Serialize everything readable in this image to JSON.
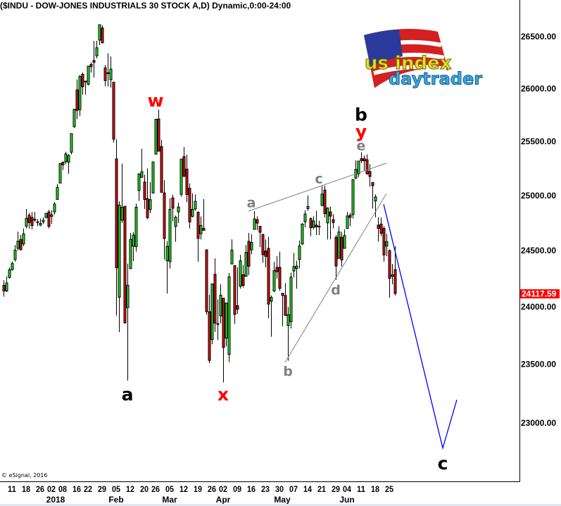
{
  "title": "($INDU - DOW-JONES INDUSTRIALS 30 STOCK A,D) Dynamic,0:00-24:00",
  "copyright": "© eSignal, 2016",
  "logo": {
    "line1": "us index",
    "line2": "daytrader"
  },
  "colors": {
    "up": "#22dd22",
    "down": "#dd1111",
    "outline": "#000000",
    "trendline": "#808080",
    "projection": "#0000ff",
    "last_price_bg": "#ff0000",
    "wave_red": "#ff0000",
    "wave_black": "#000000",
    "wave_gray": "#808080"
  },
  "chart_data": {
    "type": "candlestick",
    "scale": "log",
    "ylim": [
      22510,
      26850
    ],
    "grid": false,
    "y_ticks": [
      "26500.00",
      "26000.00",
      "25500.00",
      "25000.00",
      "24500.00",
      "24000.00",
      "23500.00",
      "23000.00"
    ],
    "last_price": "24117.59",
    "x_week_labels": [
      {
        "date": "2017-12-11",
        "label": "11"
      },
      {
        "date": "2017-12-18",
        "label": "18"
      },
      {
        "date": "2017-12-26",
        "label": "26"
      },
      {
        "date": "2018-01-02",
        "label": "02"
      },
      {
        "date": "2018-01-08",
        "label": "08"
      },
      {
        "date": "2018-01-16",
        "label": "16"
      },
      {
        "date": "2018-01-22",
        "label": "22"
      },
      {
        "date": "2018-01-29",
        "label": "29"
      },
      {
        "date": "2018-02-05",
        "label": "05"
      },
      {
        "date": "2018-02-12",
        "label": "12"
      },
      {
        "date": "2018-02-20",
        "label": "20"
      },
      {
        "date": "2018-02-26",
        "label": "26"
      },
      {
        "date": "2018-03-05",
        "label": "05"
      },
      {
        "date": "2018-03-12",
        "label": "12"
      },
      {
        "date": "2018-03-19",
        "label": "19"
      },
      {
        "date": "2018-03-26",
        "label": "26"
      },
      {
        "date": "2018-04-02",
        "label": "02"
      },
      {
        "date": "2018-04-09",
        "label": "09"
      },
      {
        "date": "2018-04-16",
        "label": "16"
      },
      {
        "date": "2018-04-23",
        "label": "23"
      },
      {
        "date": "2018-04-30",
        "label": "30"
      },
      {
        "date": "2018-05-07",
        "label": "07"
      },
      {
        "date": "2018-05-14",
        "label": "14"
      },
      {
        "date": "2018-05-21",
        "label": "21"
      },
      {
        "date": "2018-05-29",
        "label": "29"
      },
      {
        "date": "2018-06-04",
        "label": "04"
      },
      {
        "date": "2018-06-11",
        "label": "11"
      },
      {
        "date": "2018-06-18",
        "label": "18"
      },
      {
        "date": "2018-06-25",
        "label": "25"
      }
    ],
    "x_month_labels": [
      {
        "date": "2018-01-02",
        "label": "2018"
      },
      {
        "date": "2018-02-05",
        "label": "Feb"
      },
      {
        "date": "2018-03-05",
        "label": "Mar"
      },
      {
        "date": "2018-04-02",
        "label": "Apr"
      },
      {
        "date": "2018-05-01",
        "label": "May"
      },
      {
        "date": "2018-06-04",
        "label": "Jun"
      }
    ],
    "candles": [
      [
        "2017-12-06",
        24190,
        24235,
        24090,
        24140
      ],
      [
        "2017-12-07",
        24140,
        24270,
        24130,
        24211
      ],
      [
        "2017-12-08",
        24260,
        24350,
        24250,
        24329
      ],
      [
        "2017-12-11",
        24330,
        24400,
        24320,
        24386
      ],
      [
        "2017-12-12",
        24420,
        24550,
        24400,
        24504
      ],
      [
        "2017-12-13",
        24520,
        24670,
        24500,
        24585
      ],
      [
        "2017-12-14",
        24600,
        24640,
        24500,
        24508
      ],
      [
        "2017-12-15",
        24560,
        24700,
        24540,
        24651
      ],
      [
        "2017-12-18",
        24720,
        24876,
        24700,
        24792
      ],
      [
        "2017-12-19",
        24820,
        24840,
        24700,
        24754
      ],
      [
        "2017-12-20",
        24800,
        24850,
        24690,
        24726
      ],
      [
        "2017-12-21",
        24780,
        24850,
        24760,
        24782
      ],
      [
        "2017-12-22",
        24760,
        24785,
        24720,
        24754
      ],
      [
        "2017-12-26",
        24730,
        24790,
        24720,
        24746
      ],
      [
        "2017-12-27",
        24760,
        24800,
        24740,
        24774
      ],
      [
        "2017-12-28",
        24800,
        24840,
        24790,
        24837
      ],
      [
        "2017-12-29",
        24850,
        24870,
        24700,
        24719
      ],
      [
        "2018-01-02",
        24810,
        24864,
        24742,
        24824
      ],
      [
        "2018-01-03",
        24850,
        24941,
        24825,
        24922
      ],
      [
        "2018-01-04",
        24964,
        25105,
        24963,
        25075
      ],
      [
        "2018-01-05",
        25114,
        25299,
        25112,
        25295
      ],
      [
        "2018-01-08",
        25308,
        25311,
        25235,
        25283
      ],
      [
        "2018-01-09",
        25312,
        25404,
        25291,
        25385
      ],
      [
        "2018-01-10",
        25308,
        25383,
        25200,
        25369
      ],
      [
        "2018-01-11",
        25400,
        25575,
        25380,
        25574
      ],
      [
        "2018-01-12",
        25639,
        25804,
        25627,
        25803
      ],
      [
        "2018-01-16",
        25987,
        26086,
        25710,
        25792
      ],
      [
        "2018-01-17",
        25799,
        26130,
        25740,
        26115
      ],
      [
        "2018-01-18",
        26137,
        26153,
        25941,
        26017
      ],
      [
        "2018-01-19",
        26070,
        26072,
        25942,
        26071
      ],
      [
        "2018-01-22",
        26040,
        26215,
        26030,
        26214
      ],
      [
        "2018-01-23",
        26231,
        26250,
        26153,
        26210
      ],
      [
        "2018-01-24",
        26269,
        26458,
        26105,
        26252
      ],
      [
        "2018-01-25",
        26313,
        26459,
        26290,
        26392
      ],
      [
        "2018-01-26",
        26466,
        26617,
        26418,
        26616
      ],
      [
        "2018-01-29",
        26584,
        26608,
        26435,
        26439
      ],
      [
        "2018-01-30",
        26198,
        26225,
        26022,
        26076
      ],
      [
        "2018-01-31",
        26150,
        26338,
        26020,
        26149
      ],
      [
        "2018-02-01",
        26084,
        26307,
        26009,
        26186
      ],
      [
        "2018-02-02",
        26061,
        26061,
        25490,
        25521
      ],
      [
        "2018-02-05",
        25338,
        25520,
        23923,
        24346
      ],
      [
        "2018-02-06",
        24085,
        24946,
        23778,
        24912
      ],
      [
        "2018-02-07",
        24775,
        25294,
        24750,
        24893
      ],
      [
        "2018-02-08",
        24902,
        24903,
        23850,
        23860
      ],
      [
        "2018-02-09",
        23993,
        24382,
        23360,
        24191
      ],
      [
        "2018-02-12",
        24338,
        24660,
        24338,
        24601
      ],
      [
        "2018-02-13",
        24540,
        24667,
        24405,
        24640
      ],
      [
        "2018-02-14",
        24535,
        24925,
        24490,
        24893
      ],
      [
        "2018-02-15",
        25047,
        25203,
        24950,
        25200
      ],
      [
        "2018-02-16",
        25166,
        25432,
        25166,
        25219
      ],
      [
        "2018-02-20",
        25124,
        25191,
        24877,
        24964
      ],
      [
        "2018-02-21",
        24971,
        25250,
        24783,
        24798
      ],
      [
        "2018-02-22",
        24872,
        25123,
        24839,
        24962
      ],
      [
        "2018-02-23",
        25022,
        25310,
        25022,
        25310
      ],
      [
        "2018-02-26",
        25382,
        25710,
        25382,
        25709
      ],
      [
        "2018-02-27",
        25711,
        25800,
        25405,
        25410
      ],
      [
        "2018-02-28",
        25453,
        25516,
        25027,
        25029
      ],
      [
        "2018-03-01",
        25024,
        25140,
        24420,
        24609
      ],
      [
        "2018-03-02",
        24410,
        24586,
        24117,
        24538
      ],
      [
        "2018-03-05",
        24400,
        24975,
        24340,
        24874
      ],
      [
        "2018-03-06",
        24978,
        25007,
        24765,
        24884
      ],
      [
        "2018-03-07",
        24717,
        24817,
        24580,
        24801
      ],
      [
        "2018-03-08",
        24850,
        24935,
        24750,
        24895
      ],
      [
        "2018-03-09",
        25010,
        25337,
        24990,
        25336
      ],
      [
        "2018-03-12",
        25359,
        25449,
        25167,
        25178
      ],
      [
        "2018-03-13",
        25243,
        25378,
        24938,
        25008
      ],
      [
        "2018-03-14",
        25066,
        25111,
        24700,
        24759
      ],
      [
        "2018-03-15",
        24810,
        25020,
        24800,
        24873
      ],
      [
        "2018-03-16",
        24877,
        25009,
        24860,
        24947
      ],
      [
        "2018-03-19",
        24847,
        24855,
        24400,
        24610
      ],
      [
        "2018-03-20",
        24652,
        24808,
        24600,
        24727
      ],
      [
        "2018-03-21",
        24700,
        24967,
        24680,
        24683
      ],
      [
        "2018-03-22",
        24507,
        24507,
        23930,
        23958
      ],
      [
        "2018-03-23",
        23957,
        24107,
        23509,
        23533
      ],
      [
        "2018-03-26",
        23714,
        24207,
        23672,
        24202
      ],
      [
        "2018-03-27",
        24288,
        24430,
        23780,
        23857
      ],
      [
        "2018-03-28",
        23852,
        24065,
        23708,
        23849
      ],
      [
        "2018-03-29",
        23920,
        24200,
        23855,
        24103
      ],
      [
        "2018-04-02",
        24076,
        24076,
        23344,
        23644
      ],
      [
        "2018-04-03",
        23726,
        24037,
        23654,
        24033
      ],
      [
        "2018-04-04",
        23585,
        24300,
        23518,
        24265
      ],
      [
        "2018-04-05",
        24380,
        24602,
        24380,
        24505
      ],
      [
        "2018-04-06",
        24366,
        24366,
        23849,
        23933
      ],
      [
        "2018-04-09",
        24010,
        24350,
        23938,
        23979
      ],
      [
        "2018-04-10",
        24182,
        24461,
        24160,
        24408
      ],
      [
        "2018-04-11",
        24284,
        24370,
        24170,
        24189
      ],
      [
        "2018-04-12",
        24271,
        24550,
        24271,
        24483
      ],
      [
        "2018-04-13",
        24584,
        24660,
        24281,
        24360
      ],
      [
        "2018-04-16",
        24507,
        24648,
        24467,
        24573
      ],
      [
        "2018-04-17",
        24691,
        24858,
        24691,
        24786
      ],
      [
        "2018-04-18",
        24780,
        24809,
        24683,
        24748
      ],
      [
        "2018-04-19",
        24719,
        24720,
        24532,
        24665
      ],
      [
        "2018-04-20",
        24645,
        24651,
        24390,
        24463
      ],
      [
        "2018-04-23",
        24496,
        24600,
        24350,
        24448
      ],
      [
        "2018-04-24",
        24520,
        24625,
        23900,
        24024
      ],
      [
        "2018-04-25",
        24050,
        24100,
        23738,
        24084
      ],
      [
        "2018-04-26",
        24140,
        24400,
        24130,
        24322
      ],
      [
        "2018-04-27",
        24350,
        24450,
        24250,
        24311
      ],
      [
        "2018-04-30",
        24350,
        24490,
        24140,
        24163
      ],
      [
        "2018-05-01",
        24120,
        24121,
        23830,
        24100
      ],
      [
        "2018-05-02",
        24100,
        24210,
        23920,
        23925
      ],
      [
        "2018-05-03",
        23836,
        23999,
        23531,
        23930
      ],
      [
        "2018-05-04",
        23870,
        24303,
        23810,
        24263
      ],
      [
        "2018-05-07",
        24317,
        24479,
        24262,
        24357
      ],
      [
        "2018-05-08",
        24340,
        24410,
        24160,
        24361
      ],
      [
        "2018-05-09",
        24420,
        24590,
        24340,
        24542
      ],
      [
        "2018-05-10",
        24560,
        24750,
        24550,
        24739
      ],
      [
        "2018-05-11",
        24760,
        24866,
        24710,
        24831
      ],
      [
        "2018-05-14",
        24880,
        25000,
        24860,
        24899
      ],
      [
        "2018-05-15",
        24790,
        24800,
        24630,
        24706
      ],
      [
        "2018-05-16",
        24710,
        24810,
        24690,
        24768
      ],
      [
        "2018-05-17",
        24730,
        24860,
        24640,
        24714
      ],
      [
        "2018-05-18",
        24720,
        24770,
        24640,
        24715
      ],
      [
        "2018-05-21",
        24910,
        25086,
        24900,
        25013
      ],
      [
        "2018-05-22",
        25050,
        25090,
        24800,
        24834
      ],
      [
        "2018-05-23",
        24750,
        24890,
        24600,
        24886
      ],
      [
        "2018-05-24",
        24850,
        24900,
        24600,
        24812
      ],
      [
        "2018-05-25",
        24780,
        24830,
        24700,
        24753
      ],
      [
        "2018-05-29",
        24620,
        24640,
        24240,
        24362
      ],
      [
        "2018-05-30",
        24430,
        24720,
        24430,
        24668
      ],
      [
        "2018-05-31",
        24620,
        24670,
        24360,
        24416
      ],
      [
        "2018-06-01",
        24520,
        24690,
        24520,
        24635
      ],
      [
        "2018-06-04",
        24700,
        24850,
        24700,
        24813
      ],
      [
        "2018-06-05",
        24820,
        24840,
        24720,
        24799
      ],
      [
        "2018-06-06",
        24825,
        25150,
        24790,
        25146
      ],
      [
        "2018-06-07",
        25160,
        25326,
        25150,
        25241
      ],
      [
        "2018-06-08",
        25200,
        25320,
        25170,
        25317
      ],
      [
        "2018-06-11",
        25340,
        25400,
        25300,
        25322
      ],
      [
        "2018-06-12",
        25340,
        25370,
        25230,
        25320
      ],
      [
        "2018-06-13",
        25330,
        25380,
        25190,
        25201
      ],
      [
        "2018-06-14",
        25220,
        25290,
        25080,
        25175
      ],
      [
        "2018-06-15",
        25120,
        25120,
        24880,
        25090
      ],
      [
        "2018-06-18",
        24950,
        25010,
        24800,
        24987
      ],
      [
        "2018-06-19",
        24730,
        24800,
        24580,
        24700
      ],
      [
        "2018-06-20",
        24740,
        24800,
        24630,
        24657
      ],
      [
        "2018-06-21",
        24700,
        24720,
        24400,
        24461
      ],
      [
        "2018-06-22",
        24540,
        24650,
        24450,
        24580
      ],
      [
        "2018-06-25",
        24500,
        24510,
        24080,
        24252
      ],
      [
        "2018-06-26",
        24270,
        24380,
        24200,
        24283
      ],
      [
        "2018-06-27",
        24330,
        24540,
        24100,
        24117.59
      ]
    ],
    "trendlines": [
      {
        "kind": "upper",
        "from": [
          "2018-04-13",
          24857
        ],
        "to": [
          "2018-06-22",
          25298
        ]
      },
      {
        "kind": "lower",
        "from": [
          "2018-05-02",
          23516
        ],
        "to": [
          "2018-06-22",
          25018
        ]
      }
    ],
    "projection": [
      [
        "2018-06-21",
        24921
      ],
      [
        "2018-07-20",
        22788
      ],
      [
        "2018-07-27",
        23196
      ]
    ],
    "annotations": [
      {
        "text": "w",
        "date": "2018-02-26",
        "price": 25885,
        "style": "red"
      },
      {
        "text": "a",
        "date": "2018-02-09",
        "price": 23243,
        "style": "black"
      },
      {
        "text": "x",
        "date": "2018-04-02",
        "price": 23243,
        "style": "red"
      },
      {
        "text": "a",
        "date": "2018-04-16",
        "price": 24934,
        "style": "gray"
      },
      {
        "text": "b",
        "date": "2018-05-03",
        "price": 23442,
        "style": "gray"
      },
      {
        "text": "c",
        "date": "2018-05-18",
        "price": 25154,
        "style": "gray"
      },
      {
        "text": "d",
        "date": "2018-05-29",
        "price": 24150,
        "style": "gray"
      },
      {
        "text": "e",
        "date": "2018-06-11",
        "price": 25461,
        "style": "gray"
      },
      {
        "text": "y",
        "date": "2018-06-11",
        "price": 25594,
        "style": "red"
      },
      {
        "text": "b",
        "date": "2018-06-11",
        "price": 25752,
        "style": "black"
      },
      {
        "text": "c",
        "date": "2018-07-20",
        "price": 22663,
        "style": "black"
      }
    ]
  }
}
